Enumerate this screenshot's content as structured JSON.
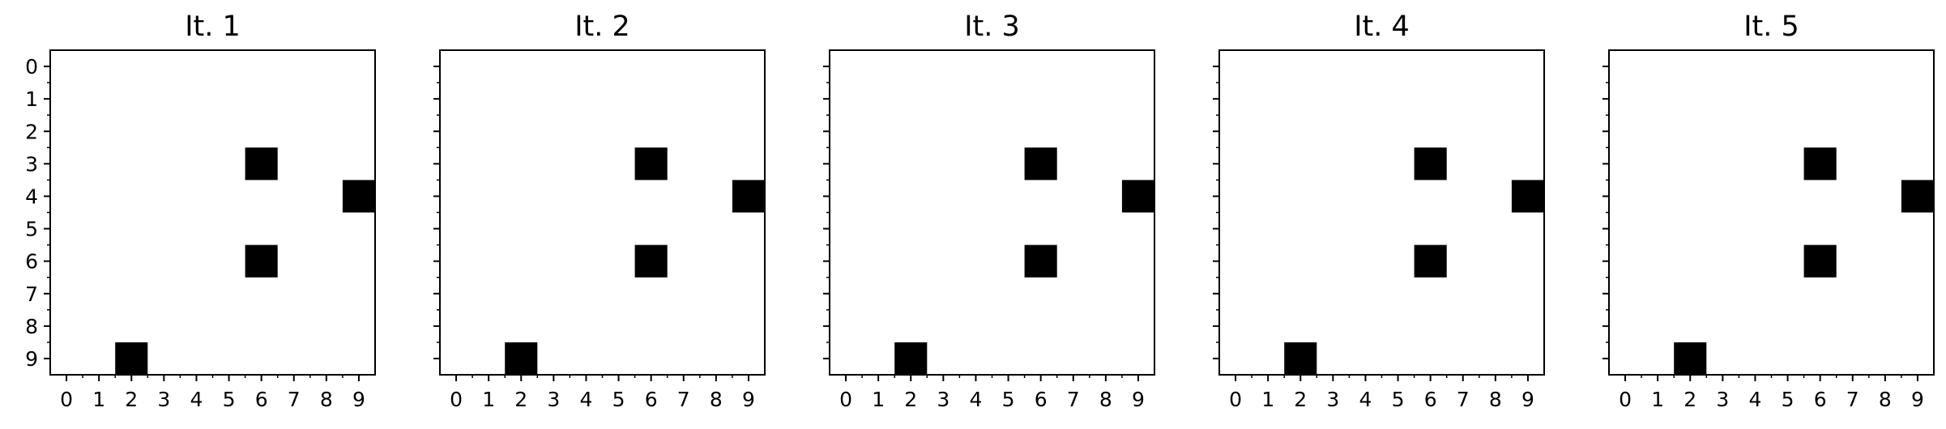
{
  "chart_data": [
    {
      "type": "heatmap",
      "title": "It. 1",
      "x_ticks": [
        "0",
        "1",
        "2",
        "3",
        "4",
        "5",
        "6",
        "7",
        "8",
        "9"
      ],
      "y_ticks": [
        "0",
        "1",
        "2",
        "3",
        "4",
        "5",
        "6",
        "7",
        "8",
        "9"
      ],
      "y_tick_labels_visible": true,
      "colormap": {
        "0": "#ffffff",
        "1": "#000000"
      },
      "filled_cells": [
        {
          "row": 3,
          "col": 6
        },
        {
          "row": 4,
          "col": 9
        },
        {
          "row": 6,
          "col": 6
        },
        {
          "row": 9,
          "col": 2
        }
      ]
    },
    {
      "type": "heatmap",
      "title": "It. 2",
      "x_ticks": [
        "0",
        "1",
        "2",
        "3",
        "4",
        "5",
        "6",
        "7",
        "8",
        "9"
      ],
      "y_ticks": [
        "0",
        "1",
        "2",
        "3",
        "4",
        "5",
        "6",
        "7",
        "8",
        "9"
      ],
      "y_tick_labels_visible": false,
      "colormap": {
        "0": "#ffffff",
        "1": "#000000"
      },
      "filled_cells": [
        {
          "row": 3,
          "col": 6
        },
        {
          "row": 4,
          "col": 9
        },
        {
          "row": 6,
          "col": 6
        },
        {
          "row": 9,
          "col": 2
        }
      ]
    },
    {
      "type": "heatmap",
      "title": "It. 3",
      "x_ticks": [
        "0",
        "1",
        "2",
        "3",
        "4",
        "5",
        "6",
        "7",
        "8",
        "9"
      ],
      "y_ticks": [
        "0",
        "1",
        "2",
        "3",
        "4",
        "5",
        "6",
        "7",
        "8",
        "9"
      ],
      "y_tick_labels_visible": false,
      "colormap": {
        "0": "#ffffff",
        "1": "#000000"
      },
      "filled_cells": [
        {
          "row": 3,
          "col": 6
        },
        {
          "row": 4,
          "col": 9
        },
        {
          "row": 6,
          "col": 6
        },
        {
          "row": 9,
          "col": 2
        }
      ]
    },
    {
      "type": "heatmap",
      "title": "It. 4",
      "x_ticks": [
        "0",
        "1",
        "2",
        "3",
        "4",
        "5",
        "6",
        "7",
        "8",
        "9"
      ],
      "y_ticks": [
        "0",
        "1",
        "2",
        "3",
        "4",
        "5",
        "6",
        "7",
        "8",
        "9"
      ],
      "y_tick_labels_visible": false,
      "colormap": {
        "0": "#ffffff",
        "1": "#000000"
      },
      "filled_cells": [
        {
          "row": 3,
          "col": 6
        },
        {
          "row": 4,
          "col": 9
        },
        {
          "row": 6,
          "col": 6
        },
        {
          "row": 9,
          "col": 2
        }
      ]
    },
    {
      "type": "heatmap",
      "title": "It. 5",
      "x_ticks": [
        "0",
        "1",
        "2",
        "3",
        "4",
        "5",
        "6",
        "7",
        "8",
        "9"
      ],
      "y_ticks": [
        "0",
        "1",
        "2",
        "3",
        "4",
        "5",
        "6",
        "7",
        "8",
        "9"
      ],
      "y_tick_labels_visible": false,
      "colormap": {
        "0": "#ffffff",
        "1": "#000000"
      },
      "filled_cells": [
        {
          "row": 3,
          "col": 6
        },
        {
          "row": 4,
          "col": 9
        },
        {
          "row": 6,
          "col": 6
        },
        {
          "row": 9,
          "col": 2
        }
      ]
    }
  ]
}
